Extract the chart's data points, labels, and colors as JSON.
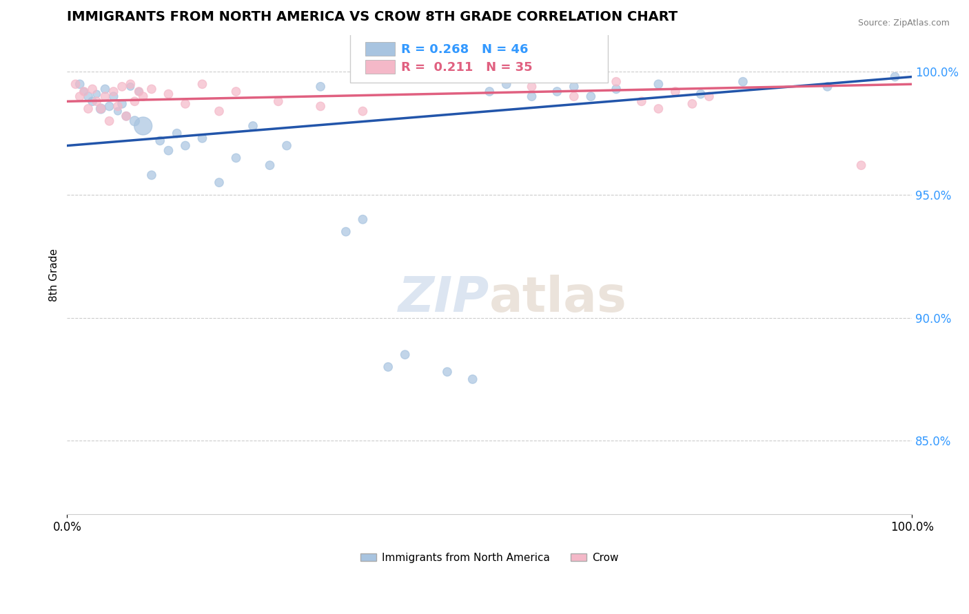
{
  "title": "IMMIGRANTS FROM NORTH AMERICA VS CROW 8TH GRADE CORRELATION CHART",
  "source_text": "Source: ZipAtlas.com",
  "xlabel": "",
  "ylabel": "8th Grade",
  "xlim": [
    0.0,
    100.0
  ],
  "ylim": [
    82.0,
    101.5
  ],
  "yticks": [
    85.0,
    90.0,
    95.0,
    100.0
  ],
  "xticks": [
    0.0,
    100.0
  ],
  "xtick_labels": [
    "0.0%",
    "100.0%"
  ],
  "legend_blue_label": "Immigrants from North America",
  "legend_pink_label": "Crow",
  "R_blue": 0.268,
  "N_blue": 46,
  "R_pink": 0.211,
  "N_pink": 35,
  "blue_color": "#a8c4e0",
  "pink_color": "#f4b8c8",
  "blue_line_color": "#2255aa",
  "pink_line_color": "#e06080",
  "watermark_zip": "ZIP",
  "watermark_atlas": "atlas",
  "blue_scatter_x": [
    1.5,
    2.0,
    2.5,
    3.0,
    3.5,
    4.0,
    4.5,
    5.0,
    5.5,
    6.0,
    6.5,
    7.0,
    7.5,
    8.0,
    8.5,
    9.0,
    10.0,
    11.0,
    12.0,
    13.0,
    14.0,
    16.0,
    18.0,
    20.0,
    22.0,
    24.0,
    26.0,
    30.0,
    33.0,
    35.0,
    38.0,
    40.0,
    45.0,
    48.0,
    50.0,
    52.0,
    55.0,
    58.0,
    60.0,
    62.0,
    65.0,
    70.0,
    75.0,
    80.0,
    90.0,
    98.0
  ],
  "blue_scatter_y": [
    99.5,
    99.2,
    99.0,
    98.8,
    99.1,
    98.5,
    99.3,
    98.6,
    99.0,
    98.4,
    98.7,
    98.2,
    99.4,
    98.0,
    99.2,
    97.8,
    95.8,
    97.2,
    96.8,
    97.5,
    97.0,
    97.3,
    95.5,
    96.5,
    97.8,
    96.2,
    97.0,
    99.4,
    93.5,
    94.0,
    88.0,
    88.5,
    87.8,
    87.5,
    99.2,
    99.5,
    99.0,
    99.2,
    99.4,
    99.0,
    99.3,
    99.5,
    99.1,
    99.6,
    99.4,
    99.8
  ],
  "blue_scatter_sizes": [
    80,
    60,
    80,
    80,
    60,
    100,
    80,
    80,
    80,
    60,
    80,
    80,
    60,
    100,
    60,
    350,
    80,
    80,
    80,
    80,
    80,
    80,
    80,
    80,
    80,
    80,
    80,
    80,
    80,
    80,
    80,
    80,
    80,
    80,
    80,
    80,
    80,
    80,
    80,
    80,
    80,
    80,
    80,
    80,
    80,
    80
  ],
  "pink_scatter_x": [
    1.0,
    1.5,
    2.0,
    2.5,
    3.0,
    3.5,
    4.0,
    4.5,
    5.0,
    5.5,
    6.0,
    6.5,
    7.0,
    7.5,
    8.0,
    8.5,
    9.0,
    10.0,
    12.0,
    14.0,
    16.0,
    18.0,
    20.0,
    25.0,
    30.0,
    35.0,
    55.0,
    60.0,
    65.0,
    68.0,
    70.0,
    72.0,
    74.0,
    76.0,
    94.0
  ],
  "pink_scatter_y": [
    99.5,
    99.0,
    99.2,
    98.5,
    99.3,
    98.8,
    98.5,
    99.0,
    98.0,
    99.2,
    98.6,
    99.4,
    98.2,
    99.5,
    98.8,
    99.2,
    99.0,
    99.3,
    99.1,
    98.7,
    99.5,
    98.4,
    99.2,
    98.8,
    98.6,
    98.4,
    99.4,
    99.0,
    99.6,
    98.8,
    98.5,
    99.2,
    98.7,
    99.0,
    96.2
  ],
  "pink_scatter_sizes": [
    80,
    80,
    80,
    80,
    80,
    80,
    80,
    80,
    80,
    80,
    80,
    80,
    80,
    80,
    80,
    80,
    80,
    80,
    80,
    80,
    80,
    80,
    80,
    80,
    80,
    80,
    80,
    80,
    80,
    80,
    80,
    80,
    80,
    80,
    80
  ],
  "blue_trend_start": 97.0,
  "blue_trend_end": 99.8,
  "pink_trend_start": 98.8,
  "pink_trend_end": 99.5
}
